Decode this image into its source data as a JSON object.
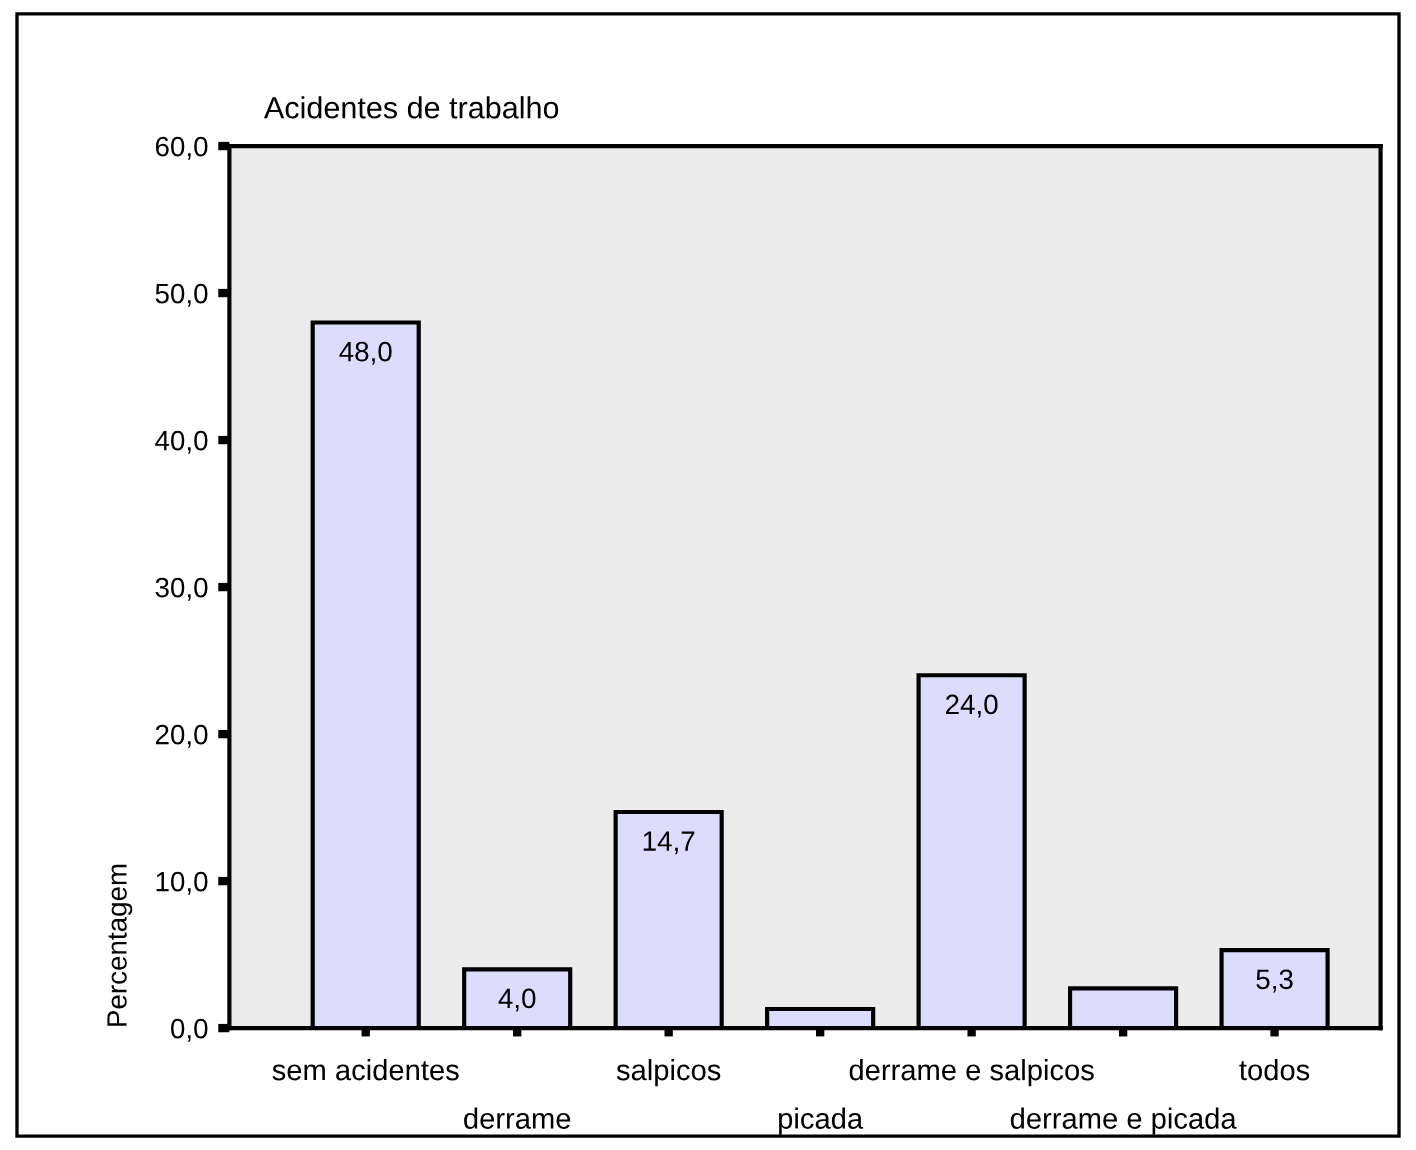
{
  "chart_data": {
    "type": "bar",
    "title": "Acidentes de trabalho",
    "ylabel": "Percentagem",
    "categories": [
      "sem acidentes",
      "derrame",
      "salpicos",
      "picada",
      "derrame e salpicos",
      "derrame e picada",
      "todos"
    ],
    "values": [
      48.0,
      4.0,
      14.7,
      1.3,
      24.0,
      2.7,
      5.3
    ],
    "value_labels": [
      "48,0",
      "4,0",
      "14,7",
      null,
      "24,0",
      null,
      "5,3"
    ],
    "color": "#dcdcfc",
    "ylim": [
      0,
      60
    ],
    "yticks": [
      {
        "value": 0,
        "label": "0,0"
      },
      {
        "value": 10,
        "label": "10,0"
      },
      {
        "value": 20,
        "label": "20,0"
      },
      {
        "value": 30,
        "label": "30,0"
      },
      {
        "value": 40,
        "label": "40,0"
      },
      {
        "value": 50,
        "label": "50,0"
      },
      {
        "value": 60,
        "label": "60,0"
      }
    ],
    "grid": false,
    "legend": false
  }
}
